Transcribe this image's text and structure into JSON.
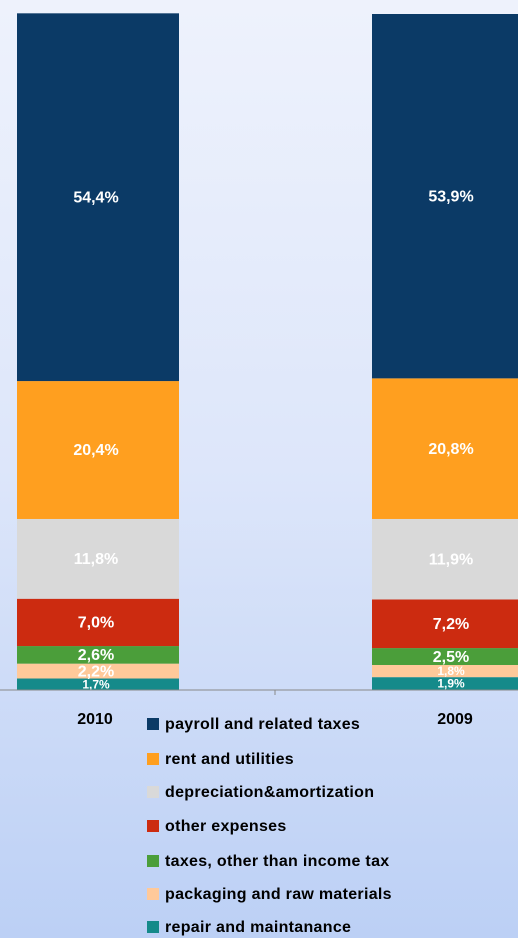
{
  "chart_data": {
    "type": "stacked_bar",
    "categories": [
      "2010",
      "2009"
    ],
    "ylim": [
      0,
      100
    ],
    "series": [
      {
        "name": "repair and maintanance",
        "color": "#158a8a",
        "values": [
          1.7,
          1.9
        ],
        "value_labels": [
          "1,7%",
          "1,9%"
        ]
      },
      {
        "name": "packaging and raw materials",
        "color": "#ffc99a",
        "values": [
          2.2,
          1.8
        ],
        "value_labels": [
          "2,2%",
          "1,8%"
        ]
      },
      {
        "name": "taxes, other than income tax",
        "color": "#4b9e3a",
        "values": [
          2.6,
          2.5
        ],
        "value_labels": [
          "2,6%",
          "2,5%"
        ]
      },
      {
        "name": "other expenses",
        "color": "#cc2b10",
        "values": [
          7.0,
          7.2
        ],
        "value_labels": [
          "7,0%",
          "7,2%"
        ]
      },
      {
        "name": "depreciation&amortization",
        "color": "#d9d9d9",
        "values": [
          11.8,
          11.9
        ],
        "value_labels": [
          "11,8%",
          "11,9%"
        ]
      },
      {
        "name": "rent and utilities",
        "color": "#ff9f1f",
        "values": [
          20.4,
          20.8
        ],
        "value_labels": [
          "20,4%",
          "20,8%"
        ]
      },
      {
        "name": "payroll and related taxes",
        "color": "#0b3a66",
        "values": [
          54.4,
          53.9
        ],
        "value_labels": [
          "54,4%",
          "53,9%"
        ]
      }
    ]
  }
}
